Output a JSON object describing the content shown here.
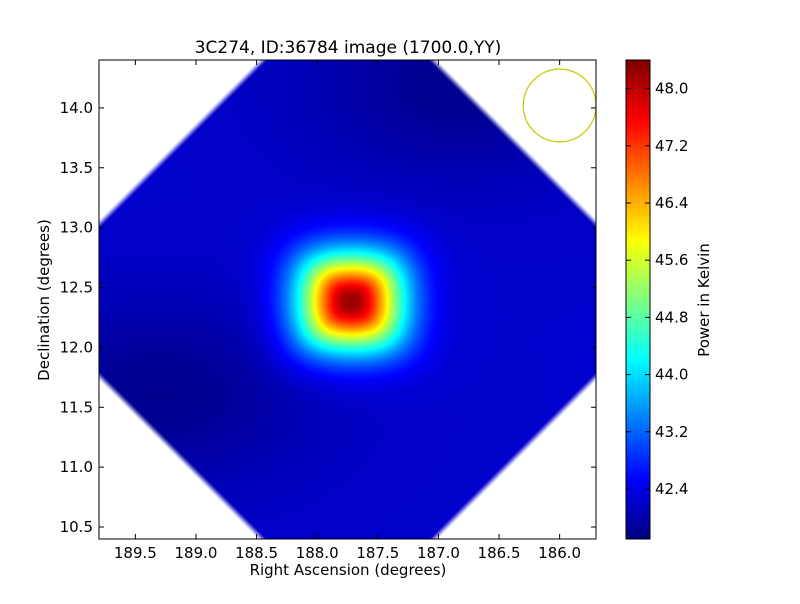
{
  "chart_data": {
    "type": "heatmap",
    "title": "3C274, ID:36784 image (1700.0,YY)",
    "xlabel": "Right Ascension (degrees)",
    "ylabel": "Declination (degrees)",
    "colorbar_label": "Power in Kelvin",
    "xlim": [
      189.8,
      185.7
    ],
    "ylim": [
      10.4,
      14.4
    ],
    "x_ticks": [
      189.5,
      189.0,
      188.5,
      188.0,
      187.5,
      187.0,
      186.5,
      186.0
    ],
    "x_tick_labels": [
      "189.5",
      "189.0",
      "188.5",
      "188.0",
      "187.5",
      "187.0",
      "186.5",
      "186.0"
    ],
    "y_ticks": [
      10.5,
      11.0,
      11.5,
      12.0,
      12.5,
      13.0,
      13.5,
      14.0
    ],
    "y_tick_labels": [
      "10.5",
      "11.0",
      "11.5",
      "12.0",
      "12.5",
      "13.0",
      "13.5",
      "14.0"
    ],
    "colorbar_range": [
      41.7,
      48.4
    ],
    "colorbar_ticks": [
      42.4,
      43.2,
      44.0,
      44.8,
      45.6,
      46.4,
      47.2,
      48.0
    ],
    "colorbar_tick_labels": [
      "42.4",
      "43.2",
      "44.0",
      "44.8",
      "45.6",
      "46.4",
      "47.2",
      "48.0"
    ],
    "colormap": "jet",
    "background_level": 42.2,
    "sources": [
      {
        "ra": 187.72,
        "dec": 12.38,
        "peak": 48.3,
        "sigma_ra": 0.3,
        "sigma_dec": 0.28
      }
    ],
    "low_regions": [
      {
        "ra": 189.3,
        "dec": 11.6,
        "level": 41.8
      },
      {
        "ra": 186.8,
        "dec": 14.2,
        "level": 41.8
      }
    ],
    "beam_circle": {
      "ra": 186.0,
      "dec": 14.02,
      "radius_deg": 0.3,
      "color": "#c8c800"
    }
  }
}
